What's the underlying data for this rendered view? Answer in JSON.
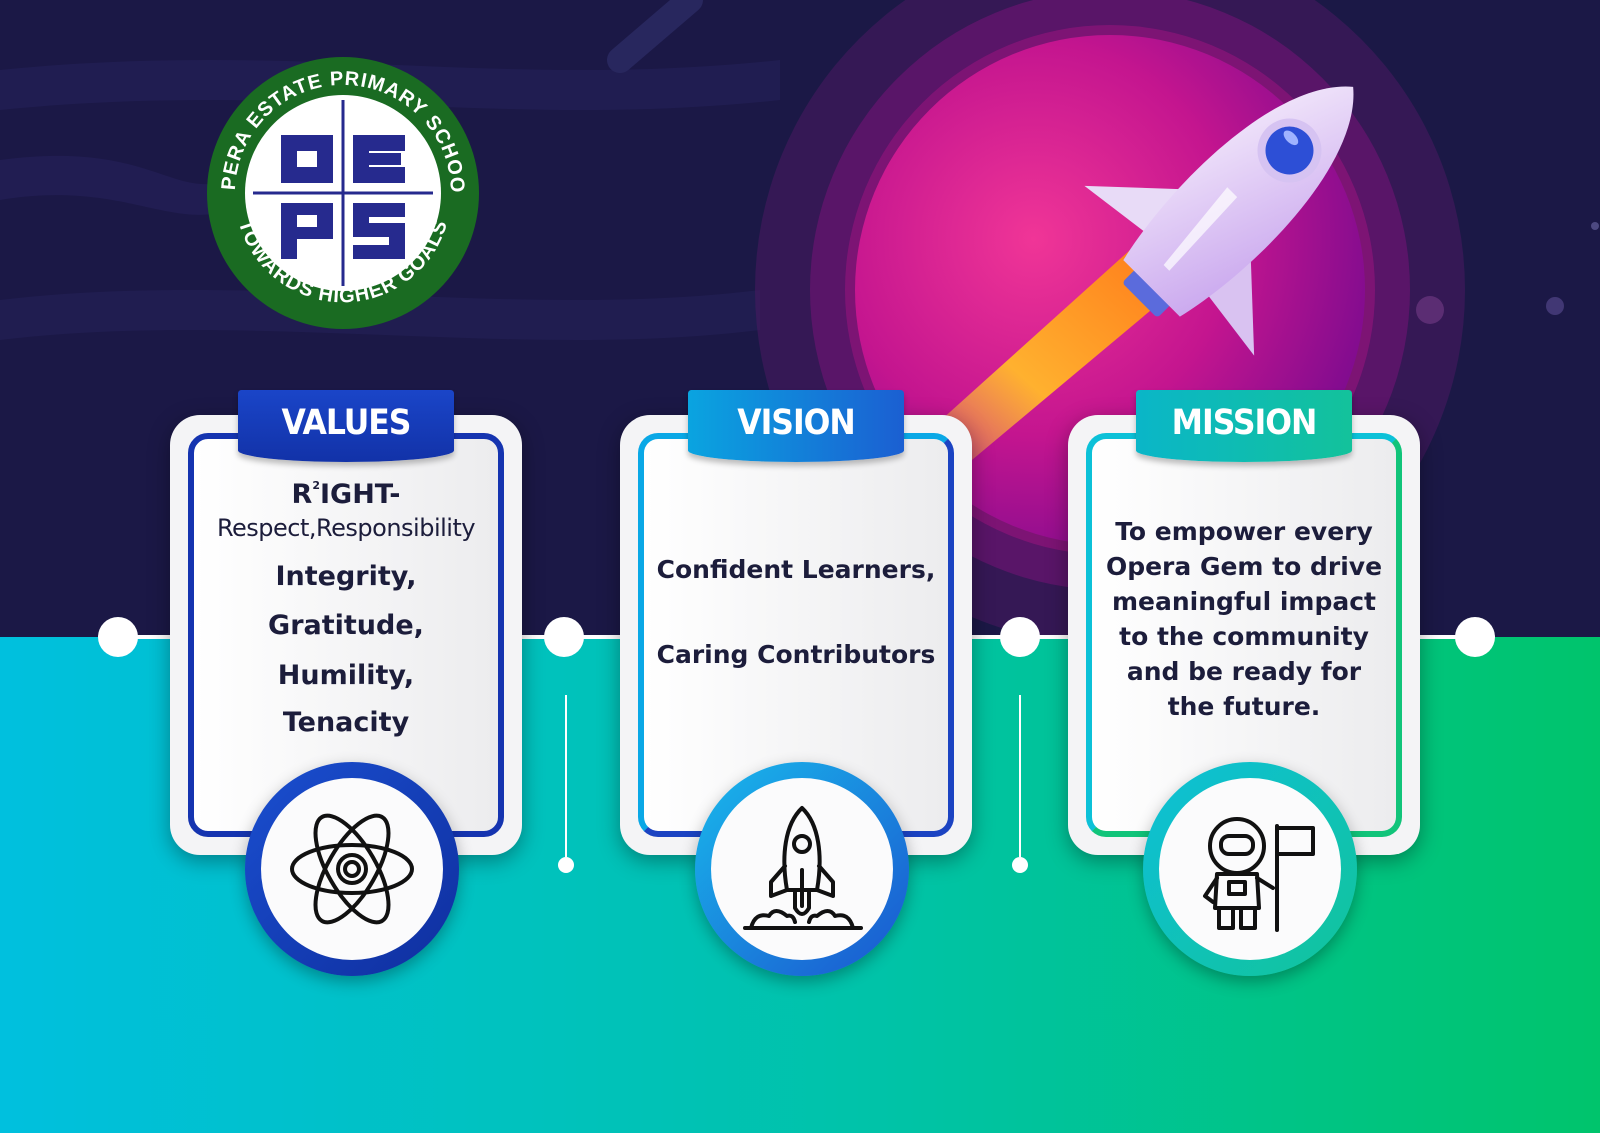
{
  "school": {
    "ring_top": "OPERA ESTATE PRIMARY SCHOOL",
    "ring_bottom": "TOWARDS HIGHER GOALS",
    "monogram": "OEPS"
  },
  "cards": [
    {
      "title": "VALUES",
      "line1_letter": "R",
      "line1_sup": "2",
      "line1_rest": "IGHT-",
      "line2": "Respect,Responsibility",
      "items": [
        "Integrity,",
        "Gratitude,",
        "Humility,",
        "Tenacity"
      ],
      "icon": "atom-icon"
    },
    {
      "title": "VISION",
      "lines": [
        "Confident Learners,",
        "Caring Contributors"
      ],
      "icon": "rocket-icon"
    },
    {
      "title": "MISSION",
      "lines": [
        "To empower every",
        "Opera Gem to drive",
        "meaningful impact",
        "to the community",
        "and be ready for",
        "the future."
      ],
      "icon": "astronaut-flag-icon"
    }
  ],
  "colors": {
    "night_sky": "#1b1846",
    "planet_magenta": "#d1208f",
    "teal": "#00c2d6",
    "green": "#00c47a",
    "values_accent": "#1d3fb8",
    "vision_accent": "#0b9fe0",
    "mission_accent": "#10c3b0",
    "logo_green": "#1a6b22",
    "logo_blue": "#262a8e"
  }
}
